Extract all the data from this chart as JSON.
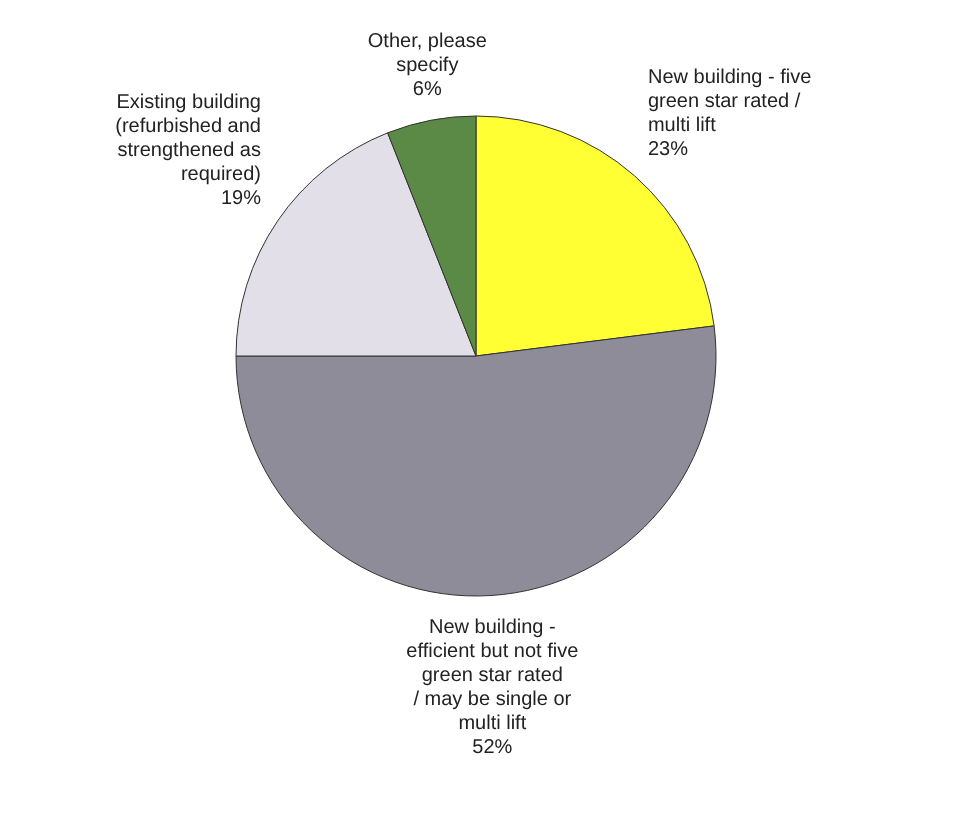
{
  "chart_data": {
    "type": "pie",
    "categories": [
      "New building - five\ngreen star rated /\nmulti lift",
      "New building -\nefficient but not five\ngreen star rated\n/ may be single or\nmulti lift",
      "Existing building\n(refurbished and\nstrengthened as\nrequired)",
      "Other, please\nspecify"
    ],
    "values": [
      23,
      52,
      19,
      6
    ],
    "value_labels": [
      "23%",
      "52%",
      "19%",
      "6%"
    ],
    "colors": [
      "#ffff33",
      "#8e8c99",
      "#e2dfe8",
      "#5b8a47"
    ]
  }
}
